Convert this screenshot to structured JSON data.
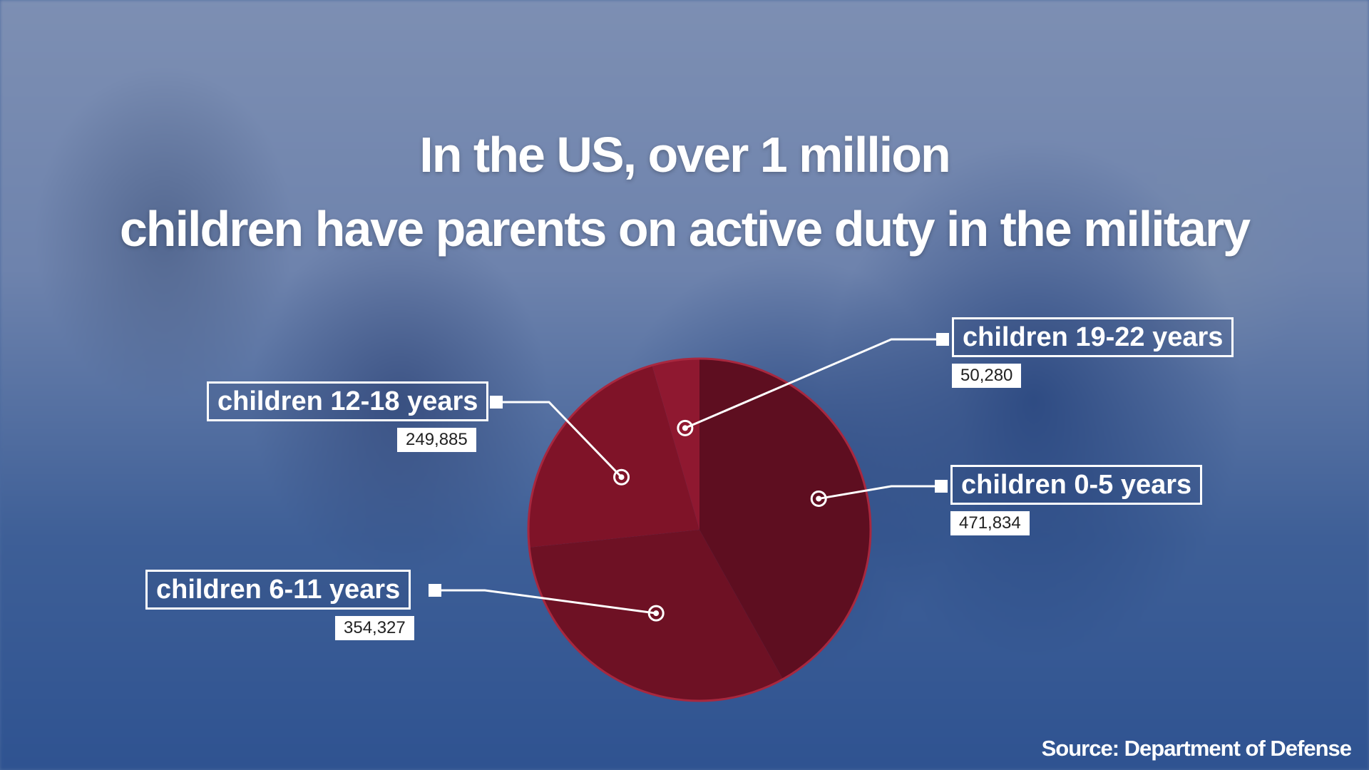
{
  "title": {
    "line1": "In the US, over 1 million",
    "line2": "children have parents on active duty in the military"
  },
  "source": "Source: Department of Defense",
  "chart_data": {
    "type": "pie",
    "slices": [
      {
        "label": "children 0-5 years",
        "value": 471834,
        "value_text": "471,834",
        "color": "#5e0e20"
      },
      {
        "label": "children 6-11 years",
        "value": 354327,
        "value_text": "354,327",
        "color": "#6e1124"
      },
      {
        "label": "children 12-18 years",
        "value": 249885,
        "value_text": "249,885",
        "color": "#7f1328"
      },
      {
        "label": "children 19-22 years",
        "value": 50280,
        "value_text": "50,280",
        "color": "#8f1830"
      }
    ],
    "start": "12 o'clock, clockwise",
    "outline_color": "#a8283f"
  }
}
